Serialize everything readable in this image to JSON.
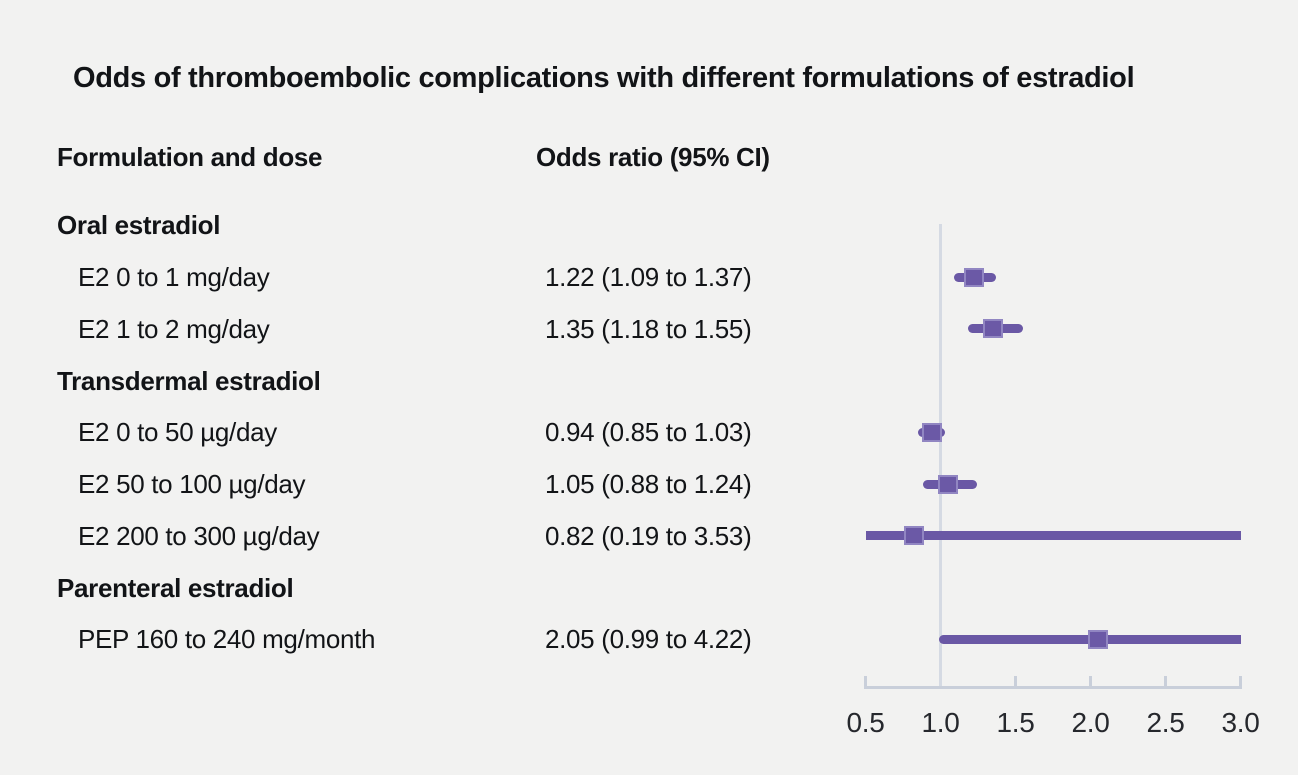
{
  "title": "Odds of thromboembolic complications with different formulations of estradiol",
  "columns": {
    "left": "Formulation and dose",
    "right": "Odds ratio (95% CI)"
  },
  "chart_data": {
    "type": "forest",
    "x_axis": {
      "min": 0.5,
      "max": 3.0,
      "ticks": [
        "0.5",
        "1.0",
        "1.5",
        "2.0",
        "2.5",
        "3.0"
      ],
      "reference_value": 1.0
    },
    "rows": [
      {
        "type": "group",
        "label": "Oral estradiol"
      },
      {
        "type": "item",
        "label": "E2 0 to 1 mg/day",
        "value_text": "1.22 (1.09 to 1.37)",
        "estimate": 1.22,
        "lo": 1.09,
        "hi": 1.37
      },
      {
        "type": "item",
        "label": "E2 1 to 2 mg/day",
        "value_text": "1.35 (1.18 to 1.55)",
        "estimate": 1.35,
        "lo": 1.18,
        "hi": 1.55
      },
      {
        "type": "group",
        "label": "Transdermal estradiol"
      },
      {
        "type": "item",
        "label": "E2 0 to 50 µg/day",
        "value_text": "0.94 (0.85 to 1.03)",
        "estimate": 0.94,
        "lo": 0.85,
        "hi": 1.03
      },
      {
        "type": "item",
        "label": "E2 50 to 100 µg/day",
        "value_text": "1.05 (0.88 to 1.24)",
        "estimate": 1.05,
        "lo": 0.88,
        "hi": 1.24
      },
      {
        "type": "item",
        "label": "E2 200 to 300 µg/day",
        "value_text": "0.82 (0.19 to 3.53)",
        "estimate": 0.82,
        "lo": 0.19,
        "hi": 3.53
      },
      {
        "type": "group",
        "label": "Parenteral estradiol"
      },
      {
        "type": "item",
        "label": "PEP 160 to 240 mg/month",
        "value_text": "2.05 (0.99 to 4.22)",
        "estimate": 2.05,
        "lo": 0.99,
        "hi": 4.22
      }
    ]
  },
  "colors": {
    "background": "#f2f2f1",
    "marker_fill": "#6b59a6",
    "marker_edge": "#9186c2",
    "ci_line": "#6a58a5",
    "reference_line": "#d5dae3",
    "axis": "#c9cfda",
    "text": "#121417",
    "tick_label": "#26282d"
  }
}
